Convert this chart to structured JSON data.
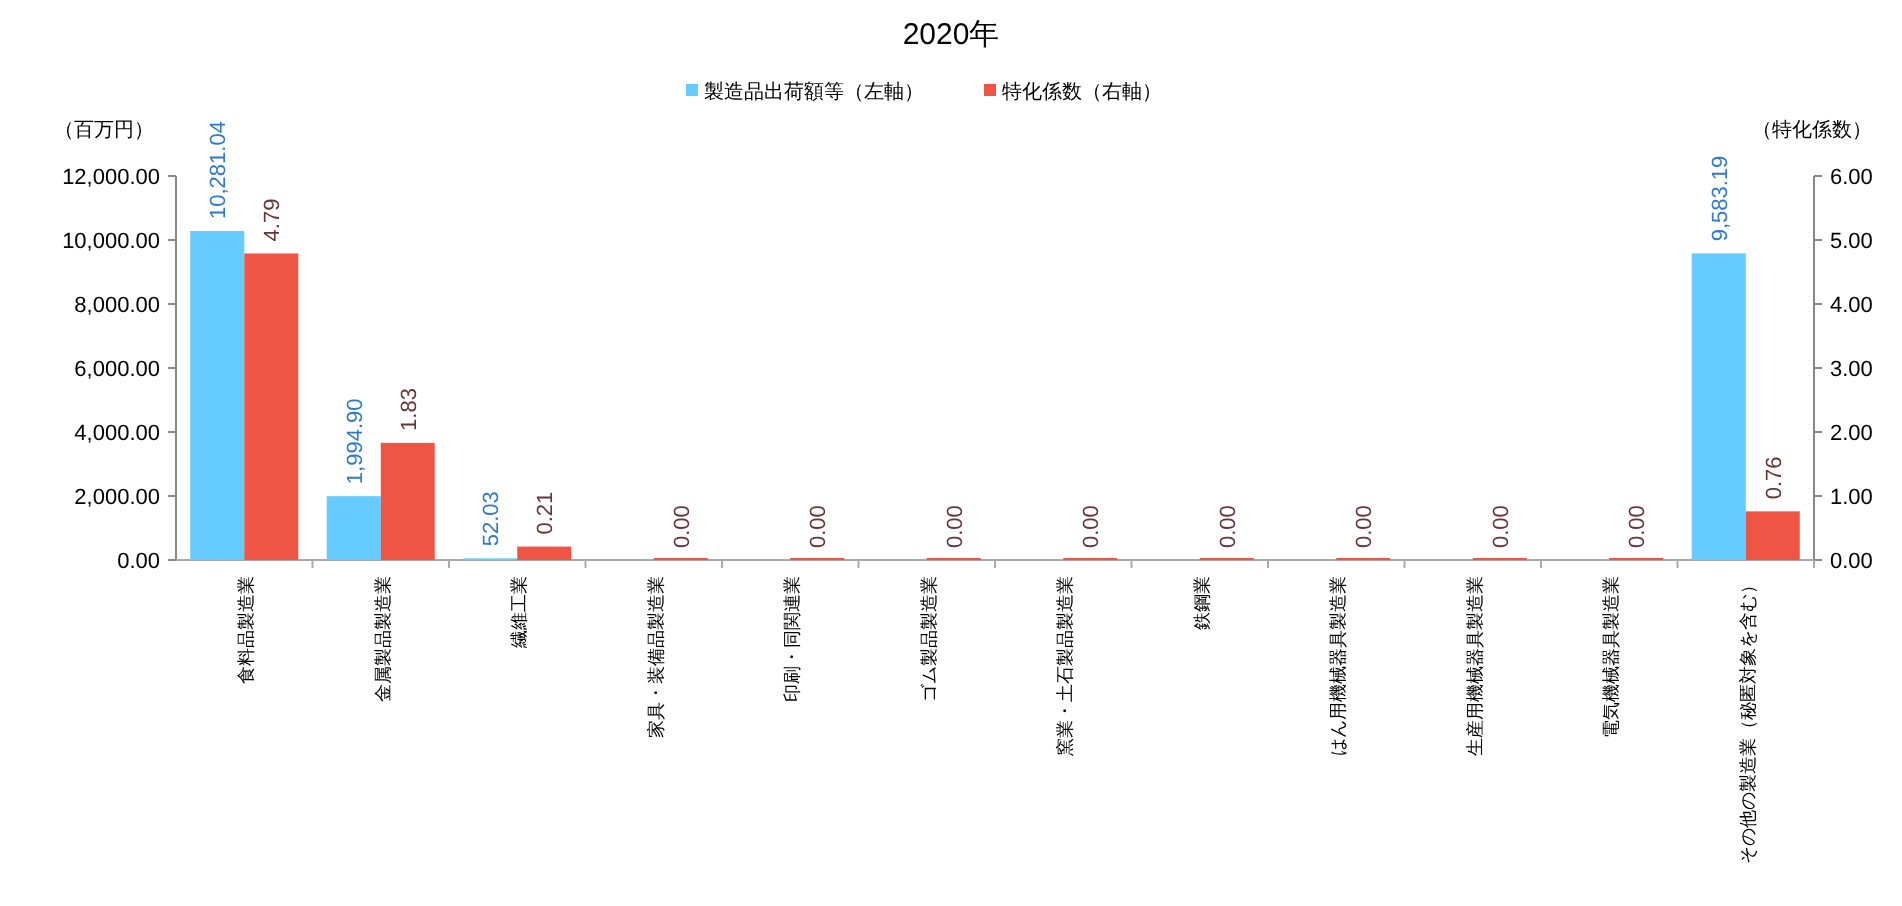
{
  "chart_data": {
    "type": "bar",
    "title": "2020年",
    "ylabel": "（百万円）",
    "y2label": "（特化係数）",
    "categories": [
      "食料品製造業",
      "金属製品製造業",
      "繊維工業",
      "家具・装備品製造業",
      "印刷・同関連業",
      "ゴム製品製造業",
      "窯業・土石製品製造業",
      "鉄鋼業",
      "はん用機械器具製造業",
      "生産用機械器具製造業",
      "電気機械器具製造業",
      "その他の製造業（秘匿対象を含む）"
    ],
    "series": [
      {
        "name": "製造品出荷額等（左軸）",
        "color": "#66ccff",
        "values": [
          10281.04,
          1994.9,
          52.03,
          null,
          null,
          null,
          null,
          null,
          null,
          null,
          null,
          9583.19
        ],
        "value_labels": [
          "10,281.04",
          "1,994.90",
          "52.03",
          null,
          null,
          null,
          null,
          null,
          null,
          null,
          null,
          "9,583.19"
        ]
      },
      {
        "name": "特化係数（右軸）",
        "color": "#ee5544",
        "axis": "y2",
        "values": [
          4.79,
          1.83,
          0.21,
          0,
          0,
          0,
          0,
          0,
          0,
          0,
          0,
          0.76
        ],
        "value_labels": [
          "4.79",
          "1.83",
          "0.21",
          "0.00",
          "0.00",
          "0.00",
          "0.00",
          "0.00",
          "0.00",
          "0.00",
          "0.00",
          "0.76"
        ]
      }
    ],
    "ylim": [
      0,
      12000
    ],
    "yticks": [
      {
        "value": 0,
        "label": "0.00"
      },
      {
        "value": 2000,
        "label": "2,000.00"
      },
      {
        "value": 4000,
        "label": "4,000.00"
      },
      {
        "value": 6000,
        "label": "6,000.00"
      },
      {
        "value": 8000,
        "label": "8,000.00"
      },
      {
        "value": 10000,
        "label": "10,000.00"
      },
      {
        "value": 12000,
        "label": "12,000.00"
      }
    ],
    "y2lim": [
      0,
      6
    ],
    "y2ticks": [
      {
        "value": 0,
        "label": "0.00"
      },
      {
        "value": 1,
        "label": "1.00"
      },
      {
        "value": 2,
        "label": "2.00"
      },
      {
        "value": 3,
        "label": "3.00"
      },
      {
        "value": 4,
        "label": "4.00"
      },
      {
        "value": 5,
        "label": "5.00"
      },
      {
        "value": 6,
        "label": "6.00"
      }
    ],
    "legend": "top",
    "grid": false
  }
}
